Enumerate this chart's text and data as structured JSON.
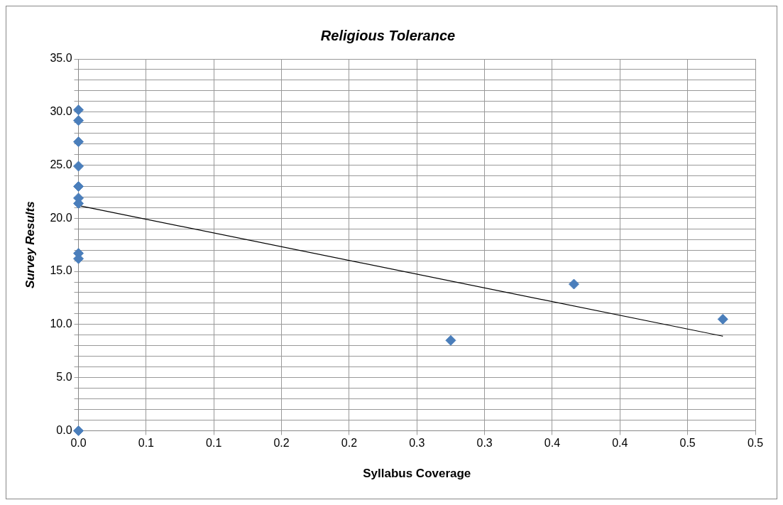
{
  "chart_data": {
    "type": "scatter",
    "title": "Religious Tolerance",
    "xlabel": "Syllabus Coverage",
    "ylabel": "Survey Results",
    "xlim": [
      0,
      0.5
    ],
    "xticks": [
      {
        "value": 0,
        "label": "0.0"
      },
      {
        "value": 0.05,
        "label": "0.1"
      },
      {
        "value": 0.1,
        "label": "0.1"
      },
      {
        "value": 0.15,
        "label": "0.2"
      },
      {
        "value": 0.2,
        "label": "0.2"
      },
      {
        "value": 0.25,
        "label": "0.3"
      },
      {
        "value": 0.3,
        "label": "0.3"
      },
      {
        "value": 0.35,
        "label": "0.4"
      },
      {
        "value": 0.4,
        "label": "0.4"
      },
      {
        "value": 0.45,
        "label": "0.5"
      },
      {
        "value": 0.5,
        "label": "0.5"
      }
    ],
    "ylim": [
      0,
      35
    ],
    "yticks": [
      {
        "value": 0,
        "label": "0.0"
      },
      {
        "value": 1,
        "label": null
      },
      {
        "value": 2,
        "label": null
      },
      {
        "value": 3,
        "label": null
      },
      {
        "value": 4,
        "label": null
      },
      {
        "value": 5,
        "label": "5.0"
      },
      {
        "value": 6,
        "label": null
      },
      {
        "value": 7,
        "label": null
      },
      {
        "value": 8,
        "label": null
      },
      {
        "value": 9,
        "label": null
      },
      {
        "value": 10,
        "label": "10.0"
      },
      {
        "value": 11,
        "label": null
      },
      {
        "value": 12,
        "label": null
      },
      {
        "value": 13,
        "label": null
      },
      {
        "value": 14,
        "label": null
      },
      {
        "value": 15,
        "label": "15.0"
      },
      {
        "value": 16,
        "label": null
      },
      {
        "value": 17,
        "label": null
      },
      {
        "value": 18,
        "label": null
      },
      {
        "value": 19,
        "label": null
      },
      {
        "value": 20,
        "label": "20.0"
      },
      {
        "value": 21,
        "label": null
      },
      {
        "value": 22,
        "label": null
      },
      {
        "value": 23,
        "label": null
      },
      {
        "value": 24,
        "label": null
      },
      {
        "value": 25,
        "label": "25.0"
      },
      {
        "value": 26,
        "label": null
      },
      {
        "value": 27,
        "label": null
      },
      {
        "value": 28,
        "label": null
      },
      {
        "value": 29,
        "label": null
      },
      {
        "value": 30,
        "label": "30.0"
      },
      {
        "value": 31,
        "label": null
      },
      {
        "value": 32,
        "label": null
      },
      {
        "value": 33,
        "label": null
      },
      {
        "value": 34,
        "label": null
      },
      {
        "value": 35,
        "label": "35.0"
      }
    ],
    "grid": true,
    "legend": false,
    "marker": "diamond",
    "series": [
      {
        "color": "#4a7ebb",
        "x": [
          0,
          0,
          0,
          0,
          0,
          0,
          0,
          0,
          0,
          0,
          0.275,
          0.366,
          0.476
        ],
        "values": [
          30.2,
          29.2,
          27.2,
          24.9,
          23.0,
          21.9,
          21.4,
          16.7,
          16.2,
          0,
          8.5,
          13.8,
          10.5
        ]
      },
      {
        "type": "line",
        "marker": "none",
        "color": "#000000",
        "x": [
          0,
          0.476
        ],
        "values": [
          21.2,
          8.9
        ]
      }
    ]
  }
}
